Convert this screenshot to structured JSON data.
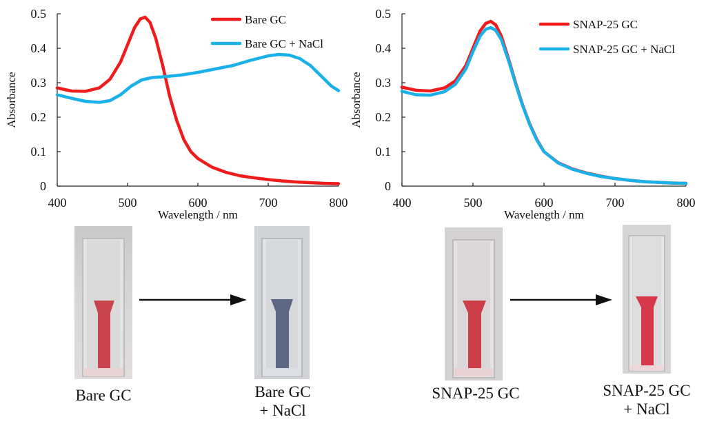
{
  "chart_data": [
    {
      "type": "line",
      "xlabel": "Wavelength / nm",
      "ylabel": "Absorbance",
      "xlim": [
        400,
        800
      ],
      "ylim": [
        0,
        0.5
      ],
      "xticks": [
        400,
        500,
        600,
        700,
        800
      ],
      "yticks": [
        0,
        0.1,
        0.2,
        0.3,
        0.4,
        0.5
      ],
      "xtick_labels": [
        "400",
        "500",
        "600",
        "700",
        "800"
      ],
      "ytick_labels": [
        "0",
        "0.1",
        "0.2",
        "0.3",
        "0.4",
        "0.5"
      ],
      "legend": "top-right",
      "series": [
        {
          "name": "Bare GC",
          "color": "#ee1c1c",
          "x": [
            400,
            420,
            440,
            460,
            475,
            490,
            500,
            510,
            518,
            525,
            532,
            540,
            550,
            560,
            570,
            580,
            590,
            600,
            620,
            640,
            660,
            680,
            700,
            720,
            740,
            760,
            780,
            800
          ],
          "y": [
            0.285,
            0.276,
            0.275,
            0.285,
            0.31,
            0.36,
            0.41,
            0.46,
            0.485,
            0.49,
            0.475,
            0.43,
            0.35,
            0.26,
            0.19,
            0.135,
            0.1,
            0.08,
            0.055,
            0.04,
            0.03,
            0.024,
            0.019,
            0.015,
            0.012,
            0.01,
            0.008,
            0.007
          ]
        },
        {
          "name": "Bare GC + NaCl",
          "color": "#1ab0e8",
          "x": [
            400,
            420,
            440,
            460,
            475,
            490,
            505,
            520,
            535,
            550,
            575,
            600,
            625,
            650,
            675,
            700,
            715,
            730,
            745,
            760,
            775,
            790,
            800
          ],
          "y": [
            0.265,
            0.255,
            0.246,
            0.243,
            0.248,
            0.265,
            0.29,
            0.308,
            0.315,
            0.317,
            0.322,
            0.33,
            0.34,
            0.35,
            0.365,
            0.378,
            0.382,
            0.38,
            0.37,
            0.35,
            0.32,
            0.29,
            0.277
          ]
        }
      ]
    },
    {
      "type": "line",
      "xlabel": "Wavelength / nm",
      "ylabel": "Absorbance",
      "xlim": [
        400,
        800
      ],
      "ylim": [
        0,
        0.5
      ],
      "xticks": [
        400,
        500,
        600,
        700,
        800
      ],
      "yticks": [
        0,
        0.1,
        0.2,
        0.3,
        0.4,
        0.5
      ],
      "xtick_labels": [
        "400",
        "500",
        "600",
        "700",
        "800"
      ],
      "ytick_labels": [
        "0",
        "0.1",
        "0.2",
        "0.3",
        "0.4",
        "0.5"
      ],
      "legend": "top-right",
      "series": [
        {
          "name": "SNAP-25 GC",
          "color": "#ee1c1c",
          "x": [
            400,
            420,
            440,
            460,
            475,
            490,
            500,
            510,
            518,
            525,
            532,
            540,
            550,
            560,
            570,
            580,
            590,
            600,
            620,
            640,
            660,
            680,
            700,
            720,
            740,
            760,
            780,
            800
          ],
          "y": [
            0.287,
            0.278,
            0.276,
            0.285,
            0.305,
            0.35,
            0.4,
            0.45,
            0.472,
            0.478,
            0.468,
            0.435,
            0.37,
            0.3,
            0.235,
            0.18,
            0.135,
            0.1,
            0.068,
            0.05,
            0.038,
            0.029,
            0.022,
            0.017,
            0.013,
            0.011,
            0.009,
            0.008
          ]
        },
        {
          "name": "SNAP-25 GC + NaCl",
          "color": "#1ab0e8",
          "x": [
            400,
            420,
            440,
            460,
            475,
            490,
            500,
            510,
            518,
            525,
            532,
            540,
            550,
            560,
            570,
            580,
            590,
            600,
            620,
            640,
            660,
            680,
            700,
            720,
            740,
            760,
            780,
            800
          ],
          "y": [
            0.275,
            0.265,
            0.264,
            0.274,
            0.295,
            0.34,
            0.39,
            0.435,
            0.455,
            0.46,
            0.452,
            0.425,
            0.365,
            0.297,
            0.233,
            0.178,
            0.133,
            0.1,
            0.067,
            0.049,
            0.037,
            0.028,
            0.022,
            0.017,
            0.013,
            0.011,
            0.009,
            0.008
          ]
        }
      ]
    }
  ],
  "photos": {
    "bare_gc": {
      "label": "Bare GC",
      "solution_color": "#c8454e"
    },
    "bare_gc_nacl": {
      "label_line1": "Bare GC",
      "label_line2": "+ NaCl",
      "solution_color": "#5d6784"
    },
    "snap_gc": {
      "label": "SNAP-25 GC",
      "solution_color": "#cc3d48"
    },
    "snap_gc_nacl": {
      "label_line1": "SNAP-25 GC",
      "label_line2": "+ NaCl",
      "solution_color": "#d63a4a"
    }
  }
}
